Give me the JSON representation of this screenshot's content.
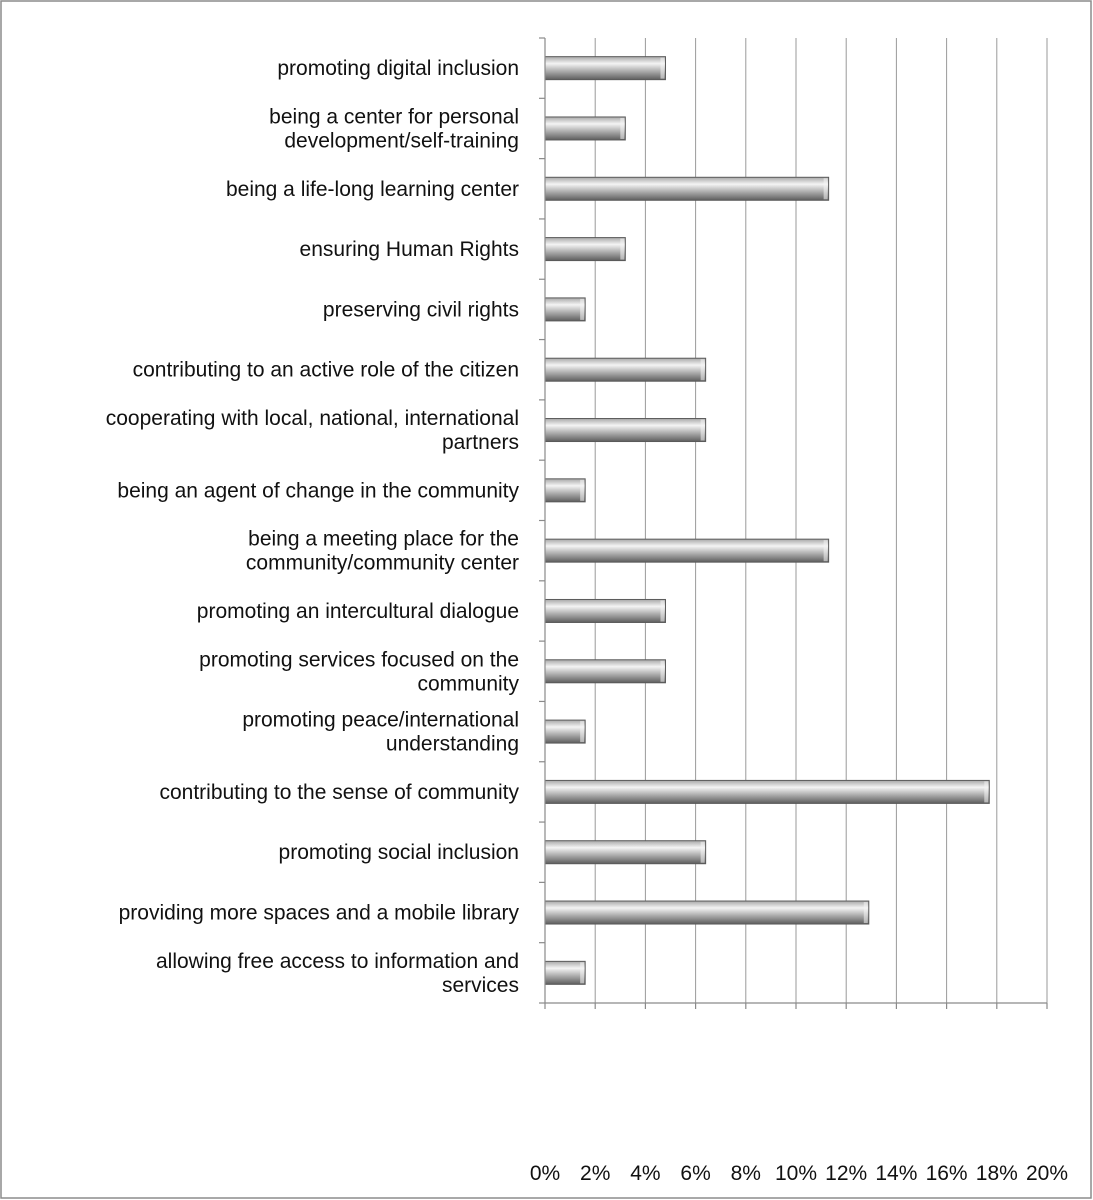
{
  "colors": {
    "bar_light": "#f4f4f4",
    "bar_mid": "#a8a8a8",
    "bar_dark": "#5e5e5e",
    "bar_stroke": "#5a5a5a",
    "grid": "#9a9a9a"
  },
  "chart_data": {
    "type": "bar",
    "orientation": "horizontal",
    "categories": [
      "promoting digital inclusion",
      "being a center for personal development/self-training",
      "being a life-long learning center",
      "ensuring Human Rights",
      "preserving civil rights",
      "contributing to an active role of the citizen",
      "cooperating with local, national, international partners",
      "being an agent of change in the community",
      "being a meeting place for the community/community center",
      "promoting an intercultural dialogue",
      "promoting services focused on the community",
      "promoting peace/international understanding",
      "contributing to the sense of community",
      "promoting social inclusion",
      "providing more spaces and a mobile library",
      "allowing free access to information and services"
    ],
    "category_label_lines": [
      [
        "promoting digital inclusion"
      ],
      [
        "being a center for personal",
        "development/self-training"
      ],
      [
        "being a life-long learning center"
      ],
      [
        "ensuring Human Rights"
      ],
      [
        "preserving civil rights"
      ],
      [
        "contributing to an active role of the citizen"
      ],
      [
        "cooperating with local, national, international",
        "partners"
      ],
      [
        "being an agent of change in the community"
      ],
      [
        "being a meeting place for the",
        "community/community center"
      ],
      [
        "promoting an intercultural dialogue"
      ],
      [
        "promoting services focused on the",
        "community"
      ],
      [
        "promoting peace/international",
        "understanding"
      ],
      [
        "contributing to the sense of community"
      ],
      [
        "promoting social inclusion"
      ],
      [
        "providing more spaces and a mobile library"
      ],
      [
        "allowing free access to information and",
        "services"
      ]
    ],
    "values": [
      4.8,
      3.2,
      11.3,
      3.2,
      1.6,
      6.4,
      6.4,
      1.6,
      11.3,
      4.8,
      4.8,
      1.6,
      17.7,
      6.4,
      12.9,
      1.6
    ],
    "xlim": [
      0,
      20
    ],
    "xticks": [
      0,
      2,
      4,
      6,
      8,
      10,
      12,
      14,
      16,
      18,
      20
    ],
    "xtick_labels": [
      "0%",
      "2%",
      "4%",
      "6%",
      "8%",
      "10%",
      "12%",
      "14%",
      "16%",
      "18%",
      "20%"
    ],
    "title": "",
    "xlabel": "",
    "ylabel": "",
    "grid": true,
    "legend": "none"
  }
}
